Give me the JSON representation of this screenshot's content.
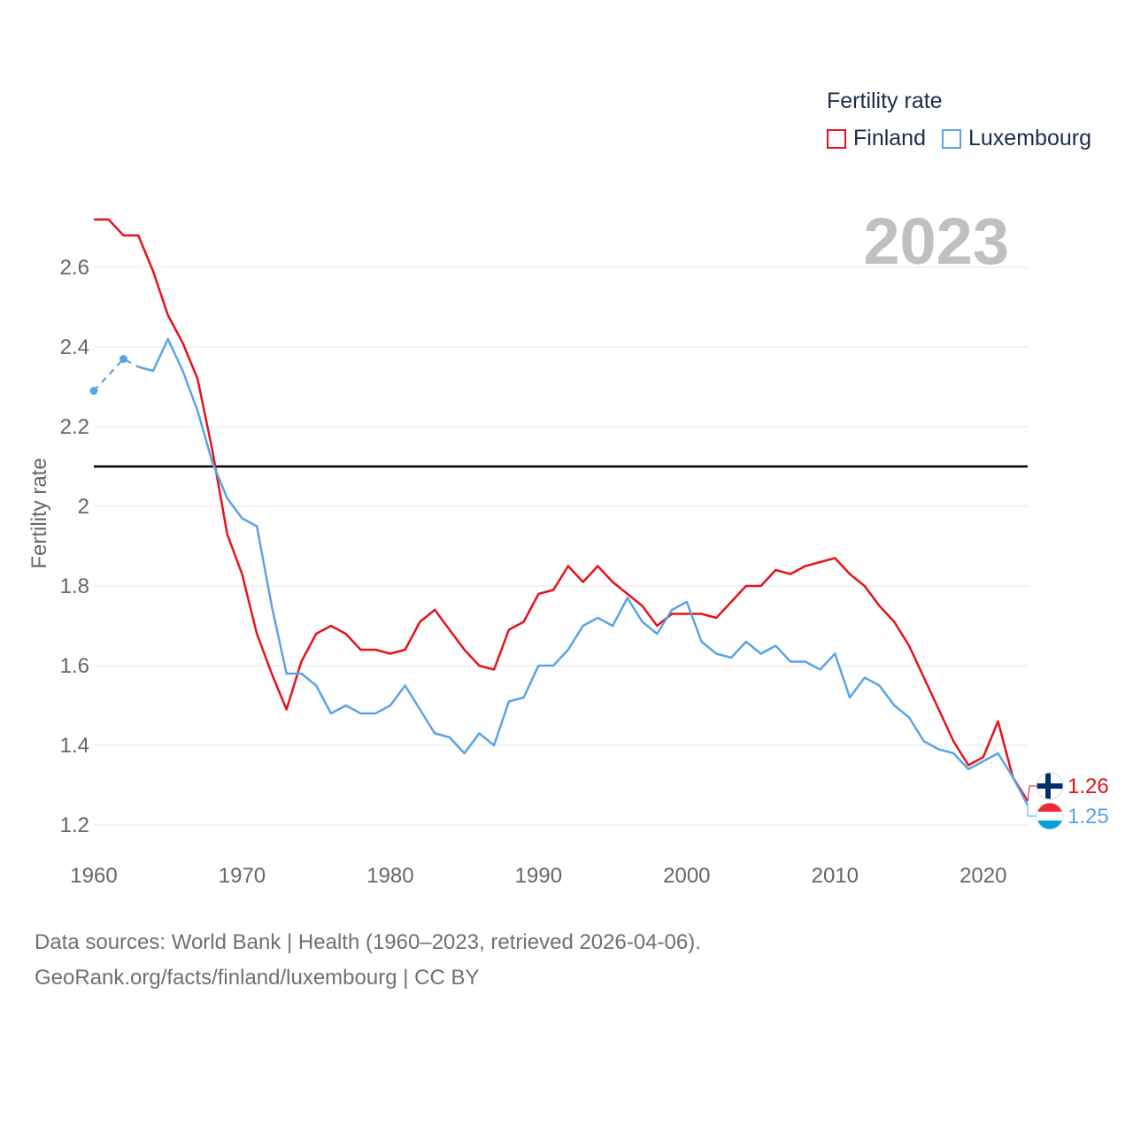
{
  "legend": {
    "title": "Fertility rate",
    "items": [
      {
        "label": "Finland",
        "color": "#e8111b"
      },
      {
        "label": "Luxembourg",
        "color": "#5aa3e8"
      }
    ]
  },
  "year_label": "2023",
  "footer": {
    "line1": "Data sources: World Bank | Health (1960–2023, retrieved 2026-04-06).",
    "line2": "GeoRank.org/facts/finland/luxembourg | CC BY"
  },
  "chart_data": {
    "type": "line",
    "title": "Fertility rate",
    "xlabel": "",
    "ylabel": "Fertility rate",
    "xlim": [
      1960,
      2023
    ],
    "ylim": [
      1.2,
      2.7
    ],
    "x_ticks": [
      1960,
      1970,
      1980,
      1990,
      2000,
      2010,
      2020
    ],
    "y_ticks": [
      {
        "value": 1.2,
        "label": "1.2"
      },
      {
        "value": 1.4,
        "label": "1.4"
      },
      {
        "value": 1.6,
        "label": "1.6"
      },
      {
        "value": 1.8,
        "label": "1.8"
      },
      {
        "value": 2.0,
        "label": "2"
      },
      {
        "value": 2.2,
        "label": "2.2"
      },
      {
        "value": 2.4,
        "label": "2.4"
      },
      {
        "value": 2.6,
        "label": "2.6"
      }
    ],
    "reference_line": {
      "value": 2.1,
      "color": "#000000"
    },
    "x": [
      1960,
      1961,
      1962,
      1963,
      1964,
      1965,
      1966,
      1967,
      1968,
      1969,
      1970,
      1971,
      1972,
      1973,
      1974,
      1975,
      1976,
      1977,
      1978,
      1979,
      1980,
      1981,
      1982,
      1983,
      1984,
      1985,
      1986,
      1987,
      1988,
      1989,
      1990,
      1991,
      1992,
      1993,
      1994,
      1995,
      1996,
      1997,
      1998,
      1999,
      2000,
      2001,
      2002,
      2003,
      2004,
      2005,
      2006,
      2007,
      2008,
      2009,
      2010,
      2011,
      2012,
      2013,
      2014,
      2015,
      2016,
      2017,
      2018,
      2019,
      2020,
      2021,
      2022,
      2023
    ],
    "series": [
      {
        "name": "Finland",
        "color": "#e8111b",
        "values": [
          2.72,
          2.72,
          2.68,
          2.68,
          2.59,
          2.48,
          2.41,
          2.32,
          2.14,
          1.93,
          1.83,
          1.68,
          1.58,
          1.49,
          1.61,
          1.68,
          1.7,
          1.68,
          1.64,
          1.64,
          1.63,
          1.64,
          1.71,
          1.74,
          1.69,
          1.64,
          1.6,
          1.59,
          1.69,
          1.71,
          1.78,
          1.79,
          1.85,
          1.81,
          1.85,
          1.81,
          1.78,
          1.75,
          1.7,
          1.73,
          1.73,
          1.73,
          1.72,
          1.76,
          1.8,
          1.8,
          1.84,
          1.83,
          1.85,
          1.86,
          1.87,
          1.83,
          1.8,
          1.75,
          1.71,
          1.65,
          1.57,
          1.49,
          1.41,
          1.35,
          1.37,
          1.46,
          1.32,
          1.26
        ],
        "end_label": "1.26"
      },
      {
        "name": "Luxembourg",
        "color": "#5aa3e8",
        "values": [
          2.29,
          null,
          2.37,
          2.35,
          2.34,
          2.42,
          2.34,
          2.24,
          2.11,
          2.02,
          1.97,
          1.95,
          1.75,
          1.58,
          1.58,
          1.55,
          1.48,
          1.5,
          1.48,
          1.48,
          1.5,
          1.55,
          1.49,
          1.43,
          1.42,
          1.38,
          1.43,
          1.4,
          1.51,
          1.52,
          1.6,
          1.6,
          1.64,
          1.7,
          1.72,
          1.7,
          1.77,
          1.71,
          1.68,
          1.74,
          1.76,
          1.66,
          1.63,
          1.62,
          1.66,
          1.63,
          1.65,
          1.61,
          1.61,
          1.59,
          1.63,
          1.52,
          1.57,
          1.55,
          1.5,
          1.47,
          1.41,
          1.39,
          1.38,
          1.34,
          1.36,
          1.38,
          1.32,
          1.25
        ],
        "dashed_segment": [
          1960,
          1963
        ],
        "end_label": "1.25"
      }
    ]
  }
}
